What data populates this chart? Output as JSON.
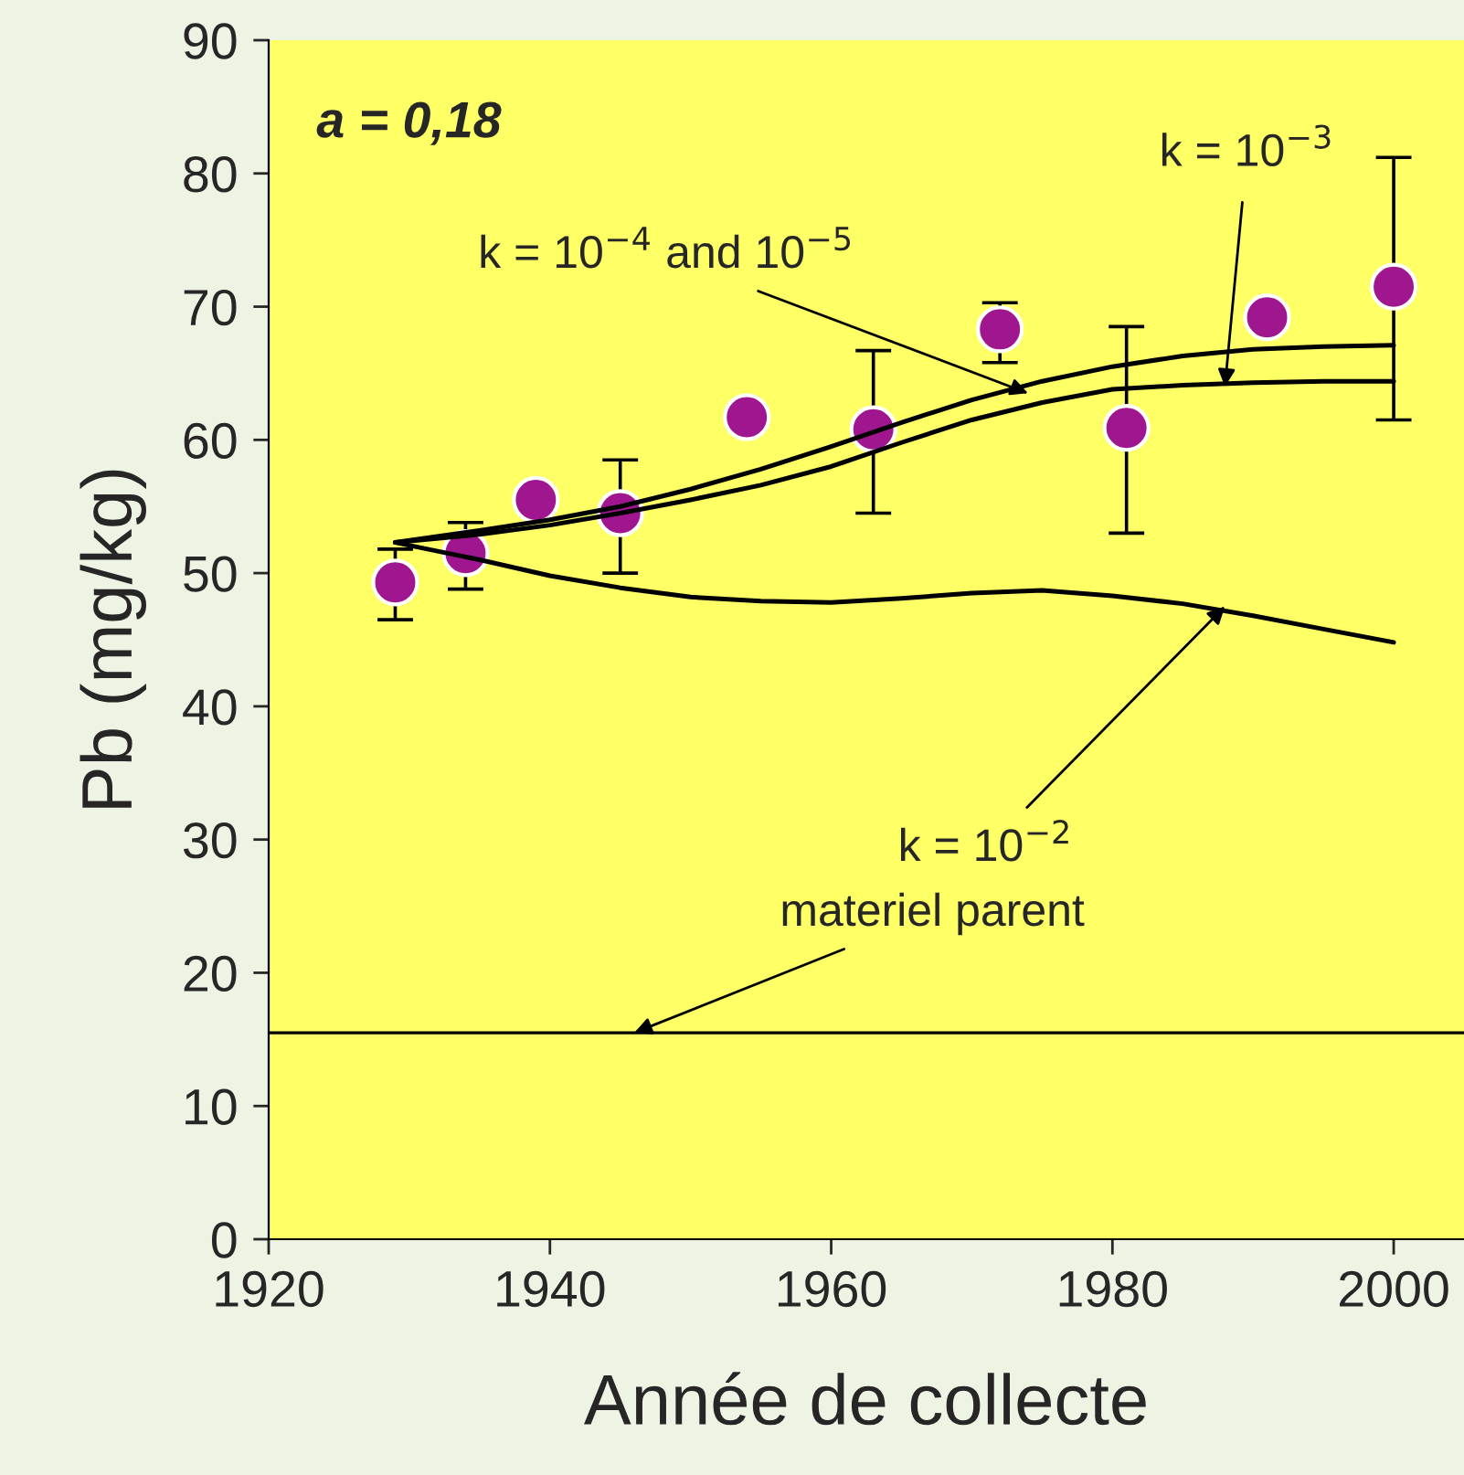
{
  "chart_data": {
    "type": "scatter",
    "xlabel": "Année de collecte",
    "ylabel": "Pb (mg/kg)",
    "xlim": [
      1920,
      2005
    ],
    "xticks": [
      1920,
      1940,
      1960,
      1980,
      2000
    ],
    "ylim": [
      0,
      90
    ],
    "yticks": [
      0,
      10,
      20,
      30,
      40,
      50,
      60,
      70,
      80,
      90
    ],
    "grid": false,
    "legend": false,
    "series": [
      {
        "type": "line",
        "color": "#000000",
        "marker": "none",
        "x": [
          1929,
          1935,
          1940,
          1945,
          1950,
          1955,
          1960,
          1965,
          1970,
          1975,
          1980,
          1985,
          1990,
          1995,
          2000
        ],
        "values": [
          52.3,
          53.2,
          54.0,
          55.0,
          56.3,
          57.8,
          59.5,
          61.3,
          63.0,
          64.4,
          65.5,
          66.3,
          66.8,
          67.0,
          67.1
        ]
      },
      {
        "type": "line",
        "color": "#000000",
        "marker": "none",
        "x": [
          1929,
          1935,
          1940,
          1945,
          1950,
          1955,
          1960,
          1965,
          1970,
          1975,
          1980,
          1985,
          1990,
          1995,
          2000
        ],
        "values": [
          52.3,
          52.9,
          53.6,
          54.5,
          55.5,
          56.6,
          58.0,
          59.8,
          61.5,
          62.8,
          63.8,
          64.1,
          64.3,
          64.4,
          64.4
        ]
      },
      {
        "type": "line",
        "color": "#000000",
        "marker": "none",
        "x": [
          1929,
          1935,
          1940,
          1945,
          1950,
          1955,
          1960,
          1965,
          1970,
          1975,
          1980,
          1985,
          1990,
          1995,
          2000
        ],
        "values": [
          52.3,
          51.0,
          49.8,
          48.9,
          48.2,
          47.9,
          47.8,
          48.1,
          48.5,
          48.7,
          48.3,
          47.7,
          46.8,
          45.8,
          44.8
        ]
      },
      {
        "color": "#a0168f",
        "marker": "circle",
        "x": [
          1929,
          1934,
          1939,
          1945,
          1954,
          1963,
          1972,
          1981,
          1991,
          2000
        ],
        "values": [
          49.3,
          51.5,
          55.5,
          54.5,
          61.7,
          60.8,
          68.3,
          60.9,
          69.2,
          71.5
        ],
        "errors": [
          [
            46.5,
            51.8
          ],
          [
            48.8,
            53.8
          ],
          null,
          [
            50.0,
            58.5
          ],
          null,
          [
            54.5,
            66.7
          ],
          [
            65.8,
            70.3
          ],
          [
            53.0,
            68.5
          ],
          null,
          [
            61.5,
            81.2
          ]
        ]
      }
    ],
    "ref_lines": [
      {
        "axis": "y",
        "value": 15.5,
        "color": "#000000",
        "line_style": "solid"
      }
    ],
    "annotations": [
      "a = 0,18",
      {
        "text": "k = 10$^{−3}$",
        "x": 1988,
        "y": 64.0
      },
      {
        "text": "k = 10$^{−4}$ and 10$^{−5}$",
        "x": 1974,
        "y": 63.5
      },
      {
        "text": "k = 10$^{−2}$",
        "x": 1988,
        "y": 47.5
      },
      {
        "text": "materiel parent",
        "x": 1946,
        "y": 15.5
      }
    ]
  }
}
